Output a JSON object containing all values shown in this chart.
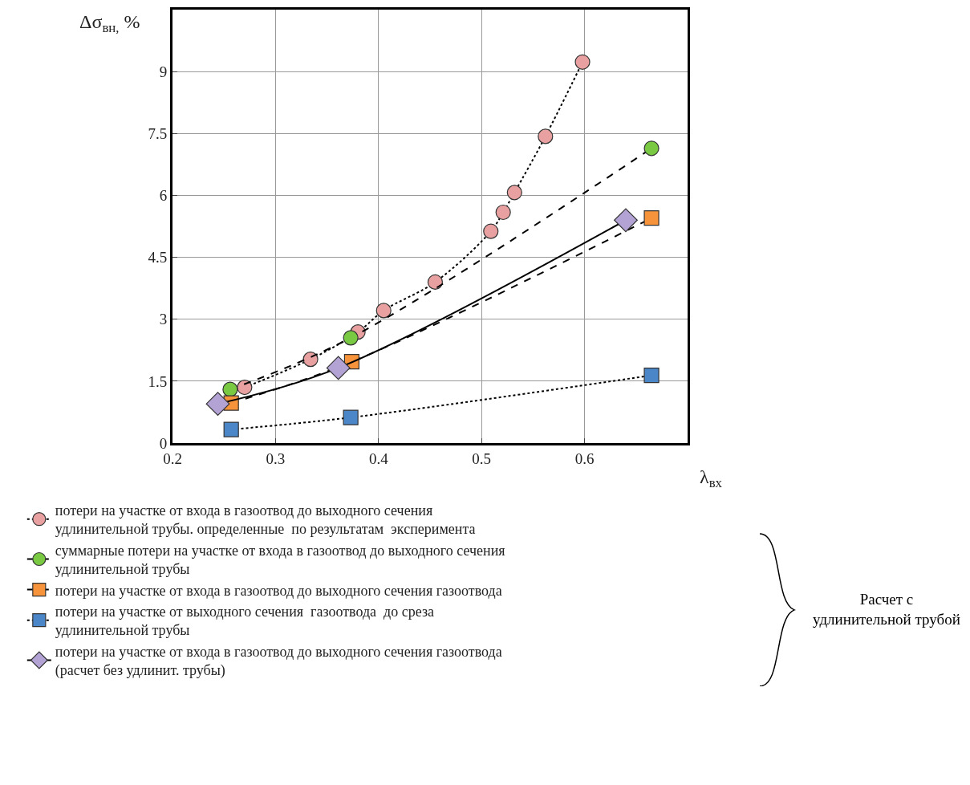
{
  "chart_data": {
    "type": "line",
    "xlabel": "λ$_{вх}$",
    "ylabel": "Δσ$_{вн,}$ %",
    "xlim": [
      0.2,
      0.7
    ],
    "xticks": [
      0.2,
      0.3,
      0.4,
      0.5,
      0.6
    ],
    "ylim": [
      0,
      10.5
    ],
    "yticks": [
      0,
      1.5,
      3,
      4.5,
      6,
      7.5,
      9
    ],
    "grid": true,
    "legend": "bottom",
    "series": [
      {
        "name": "потери на участке от входа в газоотвод до выходного сечения удлинительной трубы. определенные  по результатам  эксперимента",
        "color": "#e8a0a0",
        "marker": "circle",
        "line_style": "dotted",
        "x": [
          0.27,
          0.334,
          0.38,
          0.405,
          0.455,
          0.509,
          0.521,
          0.532,
          0.562,
          0.598
        ],
        "values": [
          1.35,
          2.03,
          2.69,
          3.21,
          3.9,
          5.13,
          5.59,
          6.07,
          7.43,
          9.23
        ]
      },
      {
        "name": "суммарные потери на участке от входа в газоотвод до выходного сечения удлинительной трубы",
        "color": "#7ac943",
        "marker": "circle",
        "line_style": "dashed",
        "x": [
          0.256,
          0.373,
          0.665
        ],
        "values": [
          1.3,
          2.55,
          7.14
        ]
      },
      {
        "name": "потери на участке от входа в газоотвод до выходного сечения газоотвода",
        "color": "#f7943b",
        "marker": "square",
        "line_style": "dashed",
        "x": [
          0.257,
          0.374,
          0.665
        ],
        "values": [
          0.97,
          1.97,
          5.45
        ]
      },
      {
        "name": "потери на участке от выходного сечения  газоотвода  до среза удлинительной трубы",
        "color": "#4a86c8",
        "marker": "square",
        "line_style": "dotted",
        "x": [
          0.257,
          0.373,
          0.665
        ],
        "values": [
          0.33,
          0.62,
          1.64
        ]
      },
      {
        "name": "потери на участке от входа в газоотвод до выходного сечения газоотвода (расчет без удлинит. трубы)",
        "color": "#b3a2d4",
        "marker": "diamond",
        "line_style": "solid",
        "x": [
          0.244,
          0.361,
          0.64
        ],
        "values": [
          0.95,
          1.82,
          5.4
        ]
      }
    ],
    "annotations": [
      "Расчет с удлинительной трубой"
    ]
  }
}
